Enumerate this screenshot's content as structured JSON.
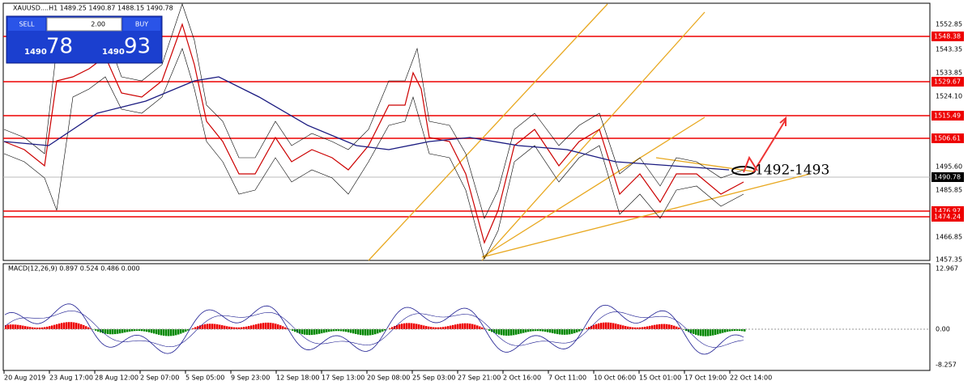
{
  "header": {
    "symbol_info": "XAUUSD....H1 1489.25 1490.87 1488.15 1490.78"
  },
  "trade_panel": {
    "sell": "SELL",
    "lot": "2.00",
    "buy": "BUY",
    "sell_price_prefix": "1490",
    "sell_price_main": "78",
    "buy_price_prefix": "1490",
    "buy_price_main": "93"
  },
  "price_axis": {
    "ticks": [
      "1552.85",
      "1543.35",
      "1533.85",
      "1524.10",
      "1495.60",
      "1485.85",
      "1466.85",
      "1457.35"
    ]
  },
  "levels": [
    "1548.38",
    "1529.67",
    "1515.49",
    "1506.61",
    "1476.97",
    "1474.24"
  ],
  "current_price": "1490.78",
  "annotation": "1492-1493",
  "macd": {
    "label": "MACD(12,26,9) 0.897 0.524 0.486 0.000",
    "ticks": [
      "12.967",
      "0.00",
      "-8.257"
    ]
  },
  "time_axis": [
    "20 Aug 2019",
    "23 Aug 17:00",
    "28 Aug 12:00",
    "2 Sep 07:00",
    "5 Sep 05:00",
    "9 Sep 23:00",
    "12 Sep 18:00",
    "17 Sep 13:00",
    "20 Sep 08:00",
    "25 Sep 03:00",
    "27 Sep 21:00",
    "2 Oct 16:00",
    "7 Oct 11:00",
    "10 Oct 06:00",
    "15 Oct 01:00",
    "17 Oct 19:00",
    "22 Oct 14:00"
  ]
}
